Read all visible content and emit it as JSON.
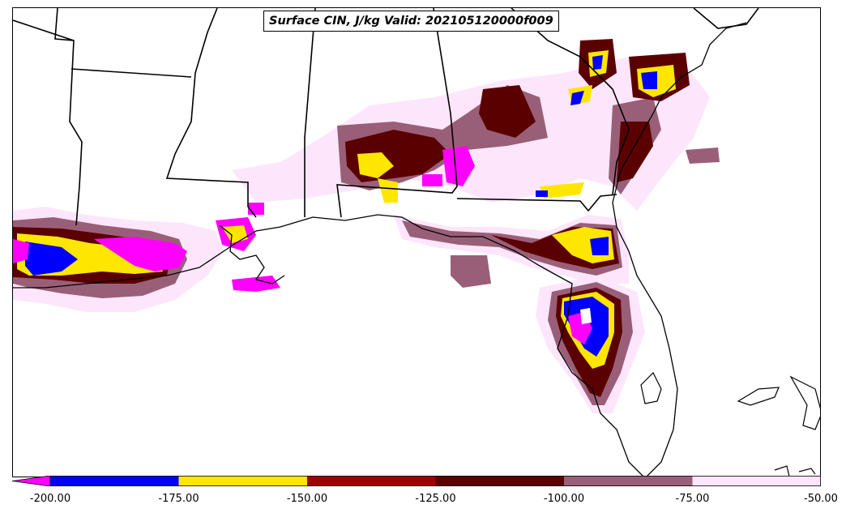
{
  "title": "Surface CIN, J/kg Valid: 202105120000f009",
  "colorbar": {
    "bins": [
      {
        "from": -200,
        "to": -175,
        "color": "#0000ff"
      },
      {
        "from": -175,
        "to": -150,
        "color": "#ffe600"
      },
      {
        "from": -150,
        "to": -125,
        "color": "#a10000"
      },
      {
        "from": -125,
        "to": -100,
        "color": "#5a0000"
      },
      {
        "from": -100,
        "to": -75,
        "color": "#9a5f78"
      },
      {
        "from": -75,
        "to": -50,
        "color": "#fde6fb"
      }
    ],
    "under_color": "#ff00ff",
    "tick_labels": [
      "-200.00",
      "-175.00",
      "-150.00",
      "-125.00",
      "-100.00",
      "-75.00",
      "-50.00"
    ]
  },
  "colors": {
    "lt_pink": "#fde6fb",
    "mauve": "#9a5f78",
    "maroon": "#5a0000",
    "red": "#a10000",
    "yellow": "#ffe600",
    "blue": "#0000ff",
    "magenta": "#ff00ff"
  }
}
